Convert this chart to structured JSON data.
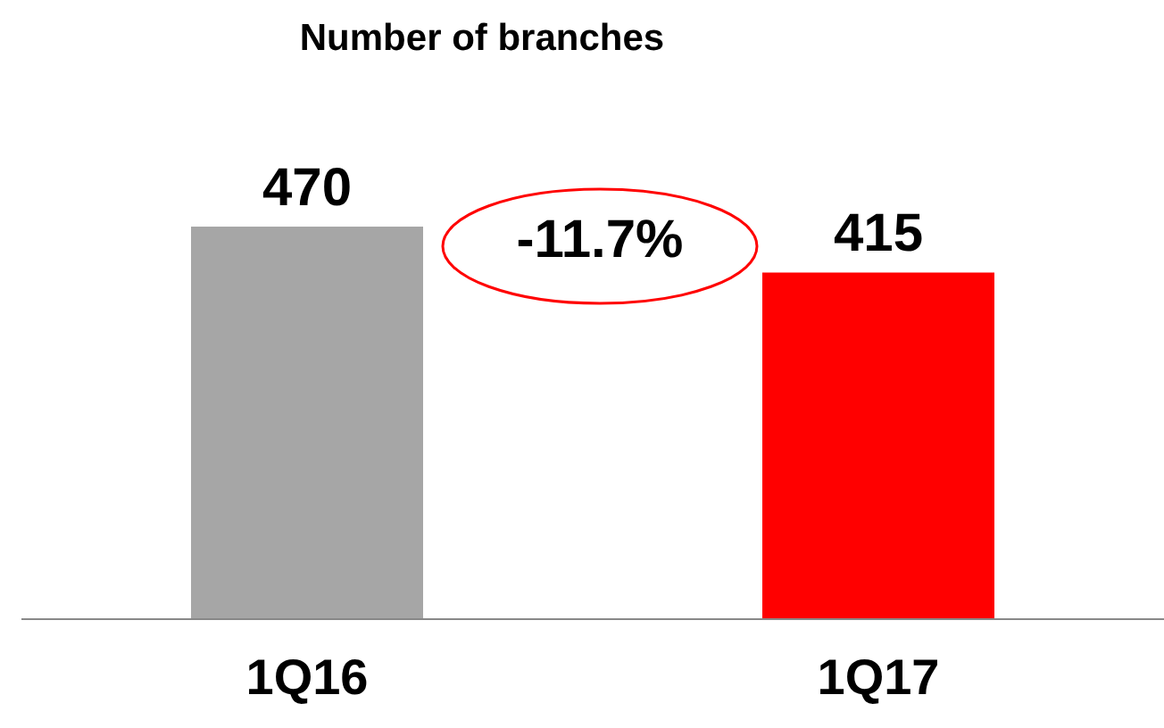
{
  "chart_data": {
    "type": "bar",
    "title": "Number of branches",
    "categories": [
      "1Q16",
      "1Q17"
    ],
    "values": [
      470,
      415
    ],
    "colors": [
      "#a6a6a6",
      "#ff0000"
    ],
    "data_labels": true,
    "annotations": [
      "-11.7%"
    ]
  }
}
